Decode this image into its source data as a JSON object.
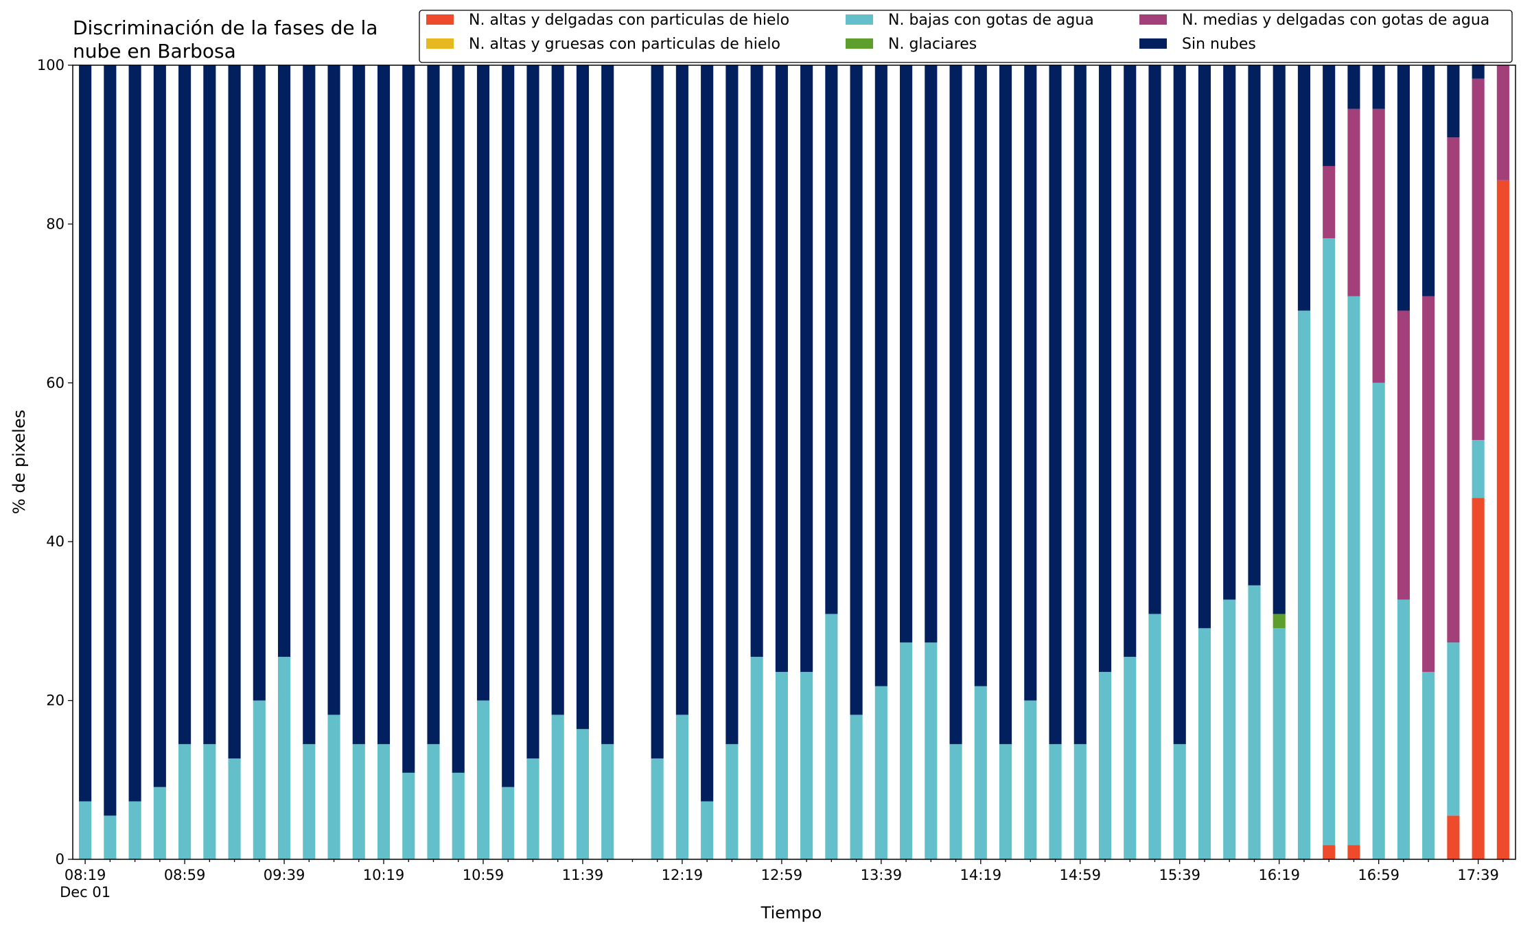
{
  "chart_data": {
    "type": "bar",
    "stacked": true,
    "title_lines": [
      "Discriminación de la fases de la",
      "nube en Barbosa"
    ],
    "xlabel": "Tiempo",
    "ylabel": "% de pixeles",
    "ylim": [
      0,
      100
    ],
    "yticks": [
      0,
      20,
      40,
      60,
      80,
      100
    ],
    "xtick_labels": [
      {
        "slot": 0,
        "label": "08:19",
        "sublabel": "Dec 01"
      },
      {
        "slot": 4,
        "label": "08:59"
      },
      {
        "slot": 8,
        "label": "09:39"
      },
      {
        "slot": 12,
        "label": "10:19"
      },
      {
        "slot": 16,
        "label": "10:59"
      },
      {
        "slot": 20,
        "label": "11:39"
      },
      {
        "slot": 24,
        "label": "12:19"
      },
      {
        "slot": 28,
        "label": "12:59"
      },
      {
        "slot": 32,
        "label": "13:39"
      },
      {
        "slot": 36,
        "label": "14:19"
      },
      {
        "slot": 40,
        "label": "14:59"
      },
      {
        "slot": 44,
        "label": "15:39"
      },
      {
        "slot": 48,
        "label": "16:19"
      },
      {
        "slot": 52,
        "label": "16:59"
      },
      {
        "slot": 56,
        "label": "17:39"
      }
    ],
    "slots": 58,
    "legend_placement": "top-right",
    "series": [
      {
        "name": "N. altas y delgadas con particulas de hielo",
        "color": "#ee4a2c"
      },
      {
        "name": "N. altas y gruesas con particulas de hielo",
        "color": "#e6b922"
      },
      {
        "name": "N. bajas con gotas de agua",
        "color": "#63bfca"
      },
      {
        "name": "N. glaciares",
        "color": "#5e9e2c"
      },
      {
        "name": "N. medias y delgadas con gotas de agua",
        "color": "#a3407a"
      },
      {
        "name": "Sin nubes",
        "color": "#02205d"
      }
    ],
    "bars": [
      {
        "slot": 0,
        "values": [
          0,
          0,
          7.3,
          0,
          0,
          92.7
        ]
      },
      {
        "slot": 1,
        "values": [
          0,
          0,
          5.5,
          0,
          0,
          94.5
        ]
      },
      {
        "slot": 2,
        "values": [
          0,
          0,
          7.3,
          0,
          0,
          92.7
        ]
      },
      {
        "slot": 3,
        "values": [
          0,
          0,
          9.1,
          0,
          0,
          90.9
        ]
      },
      {
        "slot": 4,
        "values": [
          0,
          0,
          14.5,
          0,
          0,
          85.5
        ]
      },
      {
        "slot": 5,
        "values": [
          0,
          0,
          14.5,
          0,
          0,
          85.5
        ]
      },
      {
        "slot": 6,
        "values": [
          0,
          0,
          12.7,
          0,
          0,
          87.3
        ]
      },
      {
        "slot": 7,
        "values": [
          0,
          0,
          20.0,
          0,
          0,
          80.0
        ]
      },
      {
        "slot": 8,
        "values": [
          0,
          0,
          25.5,
          0,
          0,
          74.5
        ]
      },
      {
        "slot": 9,
        "values": [
          0,
          0,
          14.5,
          0,
          0,
          85.5
        ]
      },
      {
        "slot": 10,
        "values": [
          0,
          0,
          18.2,
          0,
          0,
          81.8
        ]
      },
      {
        "slot": 11,
        "values": [
          0,
          0,
          14.5,
          0,
          0,
          85.5
        ]
      },
      {
        "slot": 12,
        "values": [
          0,
          0,
          14.5,
          0,
          0,
          85.5
        ]
      },
      {
        "slot": 13,
        "values": [
          0,
          0,
          10.9,
          0,
          0,
          89.1
        ]
      },
      {
        "slot": 14,
        "values": [
          0,
          0,
          14.5,
          0,
          0,
          85.5
        ]
      },
      {
        "slot": 15,
        "values": [
          0,
          0,
          10.9,
          0,
          0,
          89.1
        ]
      },
      {
        "slot": 16,
        "values": [
          0,
          0,
          20.0,
          0,
          0,
          80.0
        ]
      },
      {
        "slot": 17,
        "values": [
          0,
          0,
          9.1,
          0,
          0,
          90.9
        ]
      },
      {
        "slot": 18,
        "values": [
          0,
          0,
          12.7,
          0,
          0,
          87.3
        ]
      },
      {
        "slot": 19,
        "values": [
          0,
          0,
          18.2,
          0,
          0,
          81.8
        ]
      },
      {
        "slot": 20,
        "values": [
          0,
          0,
          16.4,
          0,
          0,
          83.6
        ]
      },
      {
        "slot": 21,
        "values": [
          0,
          0,
          14.5,
          0,
          0,
          85.5
        ]
      },
      {
        "slot": 23,
        "values": [
          0,
          0,
          12.7,
          0,
          0,
          87.3
        ]
      },
      {
        "slot": 24,
        "values": [
          0,
          0,
          18.2,
          0,
          0,
          81.8
        ]
      },
      {
        "slot": 25,
        "values": [
          0,
          0,
          7.3,
          0,
          0,
          92.7
        ]
      },
      {
        "slot": 26,
        "values": [
          0,
          0,
          14.5,
          0,
          0,
          85.5
        ]
      },
      {
        "slot": 27,
        "values": [
          0,
          0,
          25.5,
          0,
          0,
          74.5
        ]
      },
      {
        "slot": 28,
        "values": [
          0,
          0,
          23.6,
          0,
          0,
          76.4
        ]
      },
      {
        "slot": 29,
        "values": [
          0,
          0,
          23.6,
          0,
          0,
          76.4
        ]
      },
      {
        "slot": 30,
        "values": [
          0,
          0,
          30.9,
          0,
          0,
          69.1
        ]
      },
      {
        "slot": 31,
        "values": [
          0,
          0,
          18.2,
          0,
          0,
          81.8
        ]
      },
      {
        "slot": 32,
        "values": [
          0,
          0,
          21.8,
          0,
          0,
          78.2
        ]
      },
      {
        "slot": 33,
        "values": [
          0,
          0,
          27.3,
          0,
          0,
          72.7
        ]
      },
      {
        "slot": 34,
        "values": [
          0,
          0,
          27.3,
          0,
          0,
          72.7
        ]
      },
      {
        "slot": 35,
        "values": [
          0,
          0,
          14.5,
          0,
          0,
          85.5
        ]
      },
      {
        "slot": 36,
        "values": [
          0,
          0,
          21.8,
          0,
          0,
          78.2
        ]
      },
      {
        "slot": 37,
        "values": [
          0,
          0,
          14.5,
          0,
          0,
          85.5
        ]
      },
      {
        "slot": 38,
        "values": [
          0,
          0,
          20.0,
          0,
          0,
          80.0
        ]
      },
      {
        "slot": 39,
        "values": [
          0,
          0,
          14.5,
          0,
          0,
          85.5
        ]
      },
      {
        "slot": 40,
        "values": [
          0,
          0,
          14.5,
          0,
          0,
          85.5
        ]
      },
      {
        "slot": 41,
        "values": [
          0,
          0,
          23.6,
          0,
          0,
          76.4
        ]
      },
      {
        "slot": 42,
        "values": [
          0,
          0,
          25.5,
          0,
          0,
          74.5
        ]
      },
      {
        "slot": 43,
        "values": [
          0,
          0,
          30.9,
          0,
          0,
          69.1
        ]
      },
      {
        "slot": 44,
        "values": [
          0,
          0,
          14.5,
          0,
          0,
          85.5
        ]
      },
      {
        "slot": 45,
        "values": [
          0,
          0,
          29.1,
          0,
          0,
          70.9
        ]
      },
      {
        "slot": 46,
        "values": [
          0,
          0,
          32.7,
          0,
          0,
          67.3
        ]
      },
      {
        "slot": 47,
        "values": [
          0,
          0,
          34.5,
          0,
          0,
          65.5
        ]
      },
      {
        "slot": 48,
        "values": [
          0,
          0,
          29.1,
          1.8,
          0,
          69.1
        ]
      },
      {
        "slot": 49,
        "values": [
          0,
          0,
          69.1,
          0,
          0,
          30.9
        ]
      },
      {
        "slot": 50,
        "values": [
          1.8,
          0,
          76.4,
          0,
          9.1,
          12.7
        ]
      },
      {
        "slot": 51,
        "values": [
          1.8,
          0,
          69.1,
          0,
          23.6,
          5.5
        ]
      },
      {
        "slot": 52,
        "values": [
          0,
          0,
          60.0,
          0,
          34.5,
          5.5
        ]
      },
      {
        "slot": 53,
        "values": [
          0,
          0,
          32.7,
          0,
          36.4,
          30.9
        ]
      },
      {
        "slot": 54,
        "values": [
          0,
          0,
          23.6,
          0,
          47.3,
          29.1
        ]
      },
      {
        "slot": 55,
        "values": [
          5.5,
          0,
          21.8,
          0,
          63.6,
          9.1
        ]
      },
      {
        "slot": 56,
        "values": [
          45.5,
          0,
          7.3,
          0,
          45.5,
          1.8
        ]
      },
      {
        "slot": 57,
        "values": [
          85.5,
          0,
          0,
          0,
          14.5,
          0
        ]
      }
    ]
  }
}
